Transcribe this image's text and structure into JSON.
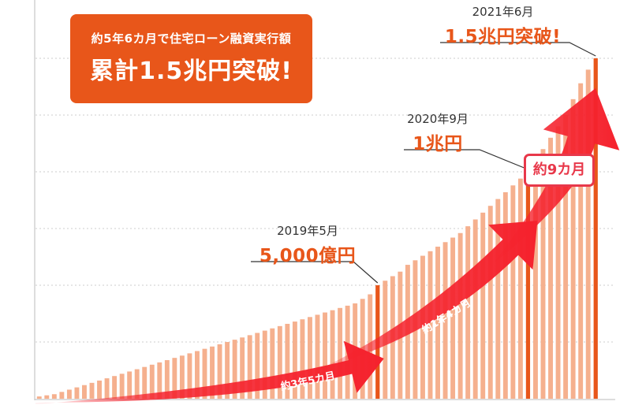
{
  "headline": {
    "line1": "約5年6カ月で住宅ローン融資実行額",
    "line2": "累計1.5兆円突破!"
  },
  "milestones": [
    {
      "date": "2019年5月",
      "value": "5,000億円"
    },
    {
      "date": "2020年9月",
      "value": "1兆円"
    },
    {
      "date": "2021年6月",
      "value": "1.5兆円突破!"
    }
  ],
  "durations": [
    {
      "label": "約3年5カ月"
    },
    {
      "label": "約1年4カ月"
    },
    {
      "label": "約9カ月"
    }
  ],
  "colors": {
    "accent": "#e8561a",
    "bar": "#f5b08e",
    "milestone_bar": "#e8561a",
    "arrow": "#f5222d",
    "badge": "#e8384a",
    "grid": "#cccccc"
  },
  "chart_data": {
    "type": "bar",
    "series": [
      {
        "name": "",
        "values": [
          0.1,
          0.15,
          0.2,
          0.3,
          0.4,
          0.5,
          0.6,
          0.7,
          0.8,
          0.9,
          1.0,
          1.1,
          1.2,
          1.3,
          1.4,
          1.5,
          1.6,
          1.7,
          1.8,
          1.9,
          2.0,
          2.1,
          2.2,
          2.3,
          2.4,
          2.5,
          2.6,
          2.7,
          2.8,
          2.9,
          3.0,
          3.1,
          3.2,
          3.3,
          3.4,
          3.5,
          3.6,
          3.7,
          3.8,
          3.9,
          4.0,
          4.1,
          4.2,
          4.4,
          4.6,
          5.0,
          5.2,
          5.4,
          5.6,
          5.9,
          6.1,
          6.3,
          6.5,
          6.7,
          6.9,
          7.1,
          7.3,
          7.6,
          7.9,
          8.2,
          8.5,
          8.8,
          9.1,
          9.4,
          9.7,
          10.0,
          10.5,
          11.0,
          11.5,
          12.0,
          12.5,
          13.2,
          13.9,
          14.5,
          15.0
        ]
      }
    ],
    "unit": "千億円",
    "milestones": [
      {
        "date": "2019年5月",
        "index": 45,
        "value": 5.0
      },
      {
        "date": "2020年9月",
        "index": 65,
        "value": 10.0
      },
      {
        "date": "2021年6月",
        "index": 74,
        "value": 15.0
      }
    ],
    "ylim": [
      0,
      15
    ],
    "grid": true
  }
}
